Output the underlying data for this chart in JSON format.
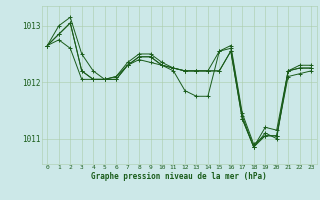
{
  "background_color": "#cce8e8",
  "grid_color": "#aaccaa",
  "line_color": "#1a5c1a",
  "xlabel": "Graphe pression niveau de la mer (hPa)",
  "xlim": [
    -0.5,
    23.5
  ],
  "ylim": [
    1010.55,
    1013.35
  ],
  "yticks": [
    1011,
    1012,
    1013
  ],
  "xticks": [
    0,
    1,
    2,
    3,
    4,
    5,
    6,
    7,
    8,
    9,
    10,
    11,
    12,
    13,
    14,
    15,
    16,
    17,
    18,
    19,
    20,
    21,
    22,
    23
  ],
  "series": [
    [
      1012.65,
      1012.85,
      1013.05,
      1012.2,
      1012.05,
      1012.05,
      1012.05,
      1012.3,
      1012.45,
      1012.45,
      1012.3,
      1012.25,
      1012.2,
      1012.2,
      1012.2,
      1012.2,
      1012.55,
      1011.35,
      1010.85,
      1011.05,
      1011.05,
      1012.2,
      1012.25,
      1012.25
    ],
    [
      1012.65,
      1012.85,
      1013.05,
      1012.2,
      1012.05,
      1012.05,
      1012.05,
      1012.3,
      1012.45,
      1012.45,
      1012.3,
      1012.25,
      1012.2,
      1012.2,
      1012.2,
      1012.2,
      1012.55,
      1011.35,
      1010.85,
      1011.2,
      1011.15,
      1012.2,
      1012.25,
      1012.25
    ],
    [
      1012.65,
      1013.0,
      1013.15,
      1012.5,
      1012.2,
      1012.05,
      1012.1,
      1012.35,
      1012.5,
      1012.5,
      1012.35,
      1012.25,
      1012.2,
      1012.2,
      1012.2,
      1012.55,
      1012.6,
      1011.4,
      1010.85,
      1011.1,
      1011.0,
      1012.2,
      1012.3,
      1012.3
    ],
    [
      1012.65,
      1012.75,
      1012.6,
      1012.05,
      1012.05,
      1012.05,
      1012.1,
      1012.3,
      1012.4,
      1012.35,
      1012.3,
      1012.2,
      1011.85,
      1011.75,
      1011.75,
      1012.55,
      1012.65,
      1011.45,
      1010.9,
      1011.05,
      1011.05,
      1012.1,
      1012.15,
      1012.2
    ]
  ]
}
